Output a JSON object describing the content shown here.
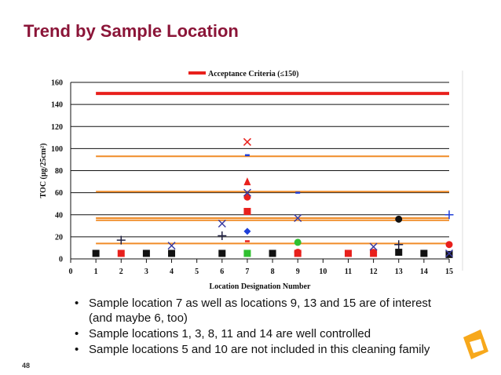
{
  "slide": {
    "title": "Trend by Sample Location",
    "bullets": [
      "Sample location 7 as well as locations 9, 13 and 15 are of interest (and maybe 6, too)",
      "Sample locations 1, 3, 8, 11 and 14 are well controlled",
      "Sample locations 5 and 10 are not included in this cleaning family"
    ],
    "page_number": "48"
  },
  "chart_data": {
    "type": "scatter",
    "x_label": "Location Designation Number",
    "y_label": "TOC (μg/25cm²)",
    "xlim": [
      0,
      15
    ],
    "xticks": [
      0,
      1,
      2,
      3,
      4,
      5,
      6,
      7,
      8,
      9,
      10,
      11,
      12,
      13,
      14,
      15
    ],
    "ylim": [
      0,
      160
    ],
    "yticks": [
      0,
      20,
      40,
      60,
      80,
      100,
      120,
      140,
      160
    ],
    "grid": true,
    "reference_lines": [
      {
        "name": "Acceptance Criteria (≤150)",
        "value": 150,
        "color": "#e8201c"
      },
      {
        "value": 93,
        "color": "#f08c28"
      },
      {
        "value": 61,
        "color": "#f08c28"
      },
      {
        "value": 37,
        "color": "#f08c28"
      },
      {
        "value": 35,
        "color": "#f08c28"
      },
      {
        "value": 14,
        "color": "#f08c28"
      }
    ],
    "series": [
      {
        "marker": "square",
        "color": "#111111",
        "x": [
          1,
          3,
          4,
          6,
          8,
          13,
          14,
          15
        ],
        "values": [
          5,
          5,
          5,
          5,
          5,
          6,
          5,
          4
        ]
      },
      {
        "marker": "square",
        "color": "#e8201c",
        "x": [
          2,
          7,
          9,
          11,
          12
        ],
        "values": [
          5,
          43,
          5,
          5,
          5
        ]
      },
      {
        "marker": "circle",
        "color": "#e8201c",
        "x": [
          7,
          9,
          12,
          15
        ],
        "values": [
          56,
          6,
          6,
          13
        ]
      },
      {
        "marker": "triangle",
        "color": "#e8201c",
        "x": [
          7
        ],
        "values": [
          70
        ]
      },
      {
        "marker": "x",
        "color": "#e8201c",
        "x": [
          7
        ],
        "values": [
          106
        ]
      },
      {
        "marker": "x",
        "color": "#3a3aa0",
        "x": [
          4,
          6,
          7,
          9,
          12,
          15
        ],
        "values": [
          12,
          32,
          60,
          37,
          11,
          5
        ]
      },
      {
        "marker": "diamond",
        "color": "#1f3fd8",
        "x": [
          7
        ],
        "values": [
          25
        ]
      },
      {
        "marker": "plus",
        "color": "#222244",
        "x": [
          2,
          6,
          13
        ],
        "values": [
          17,
          21,
          13
        ]
      },
      {
        "marker": "plus",
        "color": "#1f3fd8",
        "x": [
          15
        ],
        "values": [
          40
        ]
      },
      {
        "marker": "circle",
        "color": "#30c030",
        "x": [
          9
        ],
        "values": [
          15
        ]
      },
      {
        "marker": "square",
        "color": "#30c030",
        "x": [
          7
        ],
        "values": [
          5
        ]
      },
      {
        "marker": "circle",
        "color": "#111111",
        "x": [
          13
        ],
        "values": [
          36
        ]
      },
      {
        "marker": "dash",
        "color": "#1f3fd8",
        "x": [
          7,
          9
        ],
        "values": [
          94,
          60
        ]
      },
      {
        "marker": "dash",
        "color": "#e8201c",
        "x": [
          7
        ],
        "values": [
          16
        ]
      }
    ]
  }
}
